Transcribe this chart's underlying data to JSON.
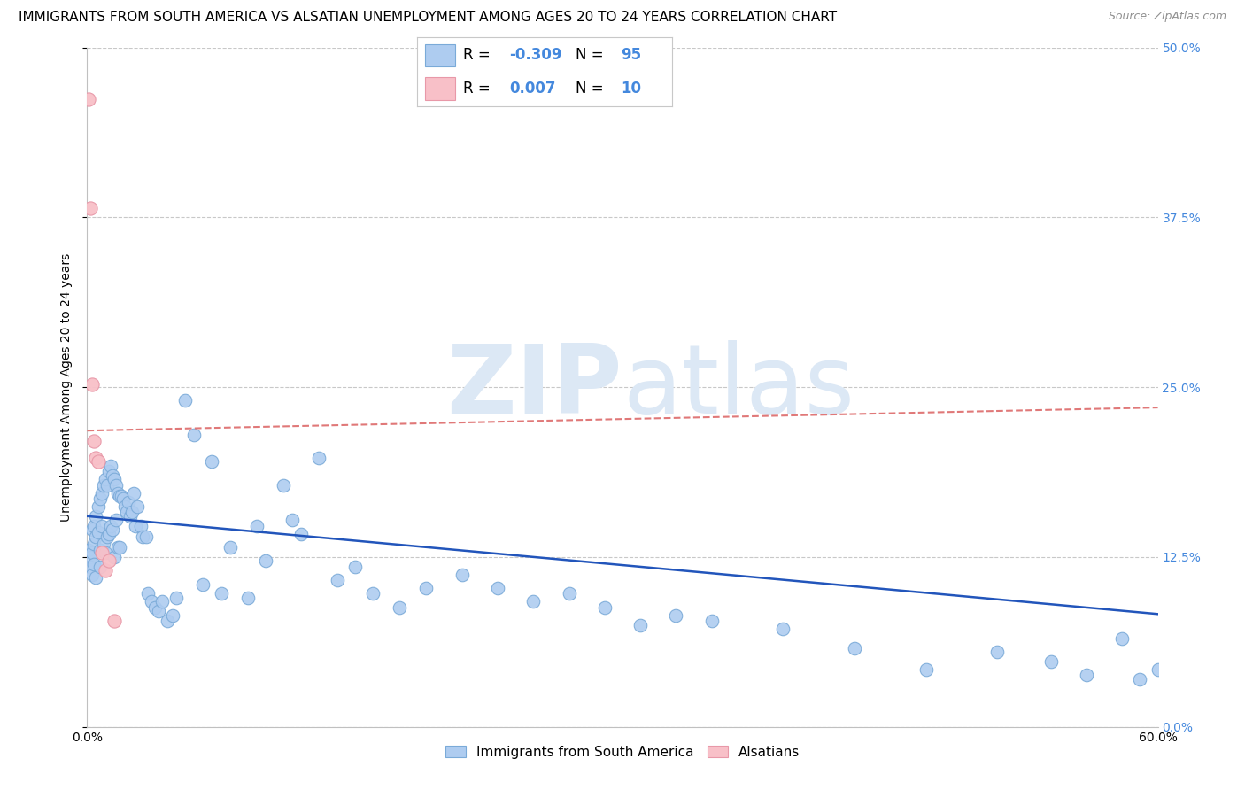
{
  "title": "IMMIGRANTS FROM SOUTH AMERICA VS ALSATIAN UNEMPLOYMENT AMONG AGES 20 TO 24 YEARS CORRELATION CHART",
  "source": "Source: ZipAtlas.com",
  "ylabel": "Unemployment Among Ages 20 to 24 years",
  "xlim": [
    0.0,
    0.6
  ],
  "ylim": [
    0.0,
    0.5
  ],
  "yticks_right": [
    0.0,
    0.125,
    0.25,
    0.375,
    0.5
  ],
  "ytick_labels_right": [
    "0.0%",
    "12.5%",
    "25.0%",
    "37.5%",
    "50.0%"
  ],
  "blue_color": "#aeccf0",
  "blue_edge_color": "#7aaad8",
  "pink_color": "#f8c0c8",
  "pink_edge_color": "#e898a8",
  "trend_blue_color": "#2255bb",
  "trend_pink_color": "#e07878",
  "grid_color": "#c8c8c8",
  "blue_trend_y0": 0.155,
  "blue_trend_y1": 0.083,
  "pink_trend_y0": 0.218,
  "pink_trend_y1": 0.235,
  "blue_scatter_x": [
    0.001,
    0.002,
    0.002,
    0.003,
    0.003,
    0.003,
    0.004,
    0.004,
    0.004,
    0.005,
    0.005,
    0.005,
    0.006,
    0.006,
    0.007,
    0.007,
    0.007,
    0.008,
    0.008,
    0.009,
    0.009,
    0.01,
    0.01,
    0.011,
    0.011,
    0.012,
    0.012,
    0.013,
    0.013,
    0.014,
    0.014,
    0.015,
    0.015,
    0.016,
    0.016,
    0.017,
    0.017,
    0.018,
    0.018,
    0.019,
    0.02,
    0.021,
    0.022,
    0.023,
    0.024,
    0.025,
    0.026,
    0.027,
    0.028,
    0.03,
    0.031,
    0.033,
    0.034,
    0.036,
    0.038,
    0.04,
    0.042,
    0.045,
    0.048,
    0.05,
    0.055,
    0.06,
    0.065,
    0.07,
    0.075,
    0.08,
    0.09,
    0.095,
    0.1,
    0.11,
    0.115,
    0.12,
    0.13,
    0.14,
    0.15,
    0.16,
    0.175,
    0.19,
    0.21,
    0.23,
    0.25,
    0.27,
    0.29,
    0.31,
    0.33,
    0.35,
    0.39,
    0.43,
    0.47,
    0.51,
    0.54,
    0.56,
    0.58,
    0.59,
    0.6
  ],
  "blue_scatter_y": [
    0.13,
    0.125,
    0.118,
    0.145,
    0.128,
    0.112,
    0.148,
    0.135,
    0.12,
    0.155,
    0.14,
    0.11,
    0.162,
    0.143,
    0.168,
    0.13,
    0.118,
    0.172,
    0.148,
    0.178,
    0.135,
    0.182,
    0.128,
    0.178,
    0.14,
    0.188,
    0.142,
    0.192,
    0.148,
    0.185,
    0.145,
    0.182,
    0.125,
    0.178,
    0.152,
    0.172,
    0.132,
    0.17,
    0.132,
    0.17,
    0.168,
    0.162,
    0.158,
    0.165,
    0.155,
    0.158,
    0.172,
    0.148,
    0.162,
    0.148,
    0.14,
    0.14,
    0.098,
    0.092,
    0.088,
    0.085,
    0.092,
    0.078,
    0.082,
    0.095,
    0.24,
    0.215,
    0.105,
    0.195,
    0.098,
    0.132,
    0.095,
    0.148,
    0.122,
    0.178,
    0.152,
    0.142,
    0.198,
    0.108,
    0.118,
    0.098,
    0.088,
    0.102,
    0.112,
    0.102,
    0.092,
    0.098,
    0.088,
    0.075,
    0.082,
    0.078,
    0.072,
    0.058,
    0.042,
    0.055,
    0.048,
    0.038,
    0.065,
    0.035,
    0.042
  ],
  "pink_scatter_x": [
    0.001,
    0.002,
    0.003,
    0.004,
    0.005,
    0.006,
    0.008,
    0.01,
    0.012,
    0.015
  ],
  "pink_scatter_y": [
    0.462,
    0.382,
    0.252,
    0.21,
    0.198,
    0.195,
    0.128,
    0.115,
    0.122,
    0.078
  ],
  "watermark_zip": "ZIP",
  "watermark_atlas": "atlas",
  "watermark_color": "#dce8f5",
  "title_fontsize": 11,
  "axis_label_fontsize": 10,
  "tick_fontsize": 10,
  "legend_fontsize": 12,
  "right_tick_color": "#4488dd"
}
